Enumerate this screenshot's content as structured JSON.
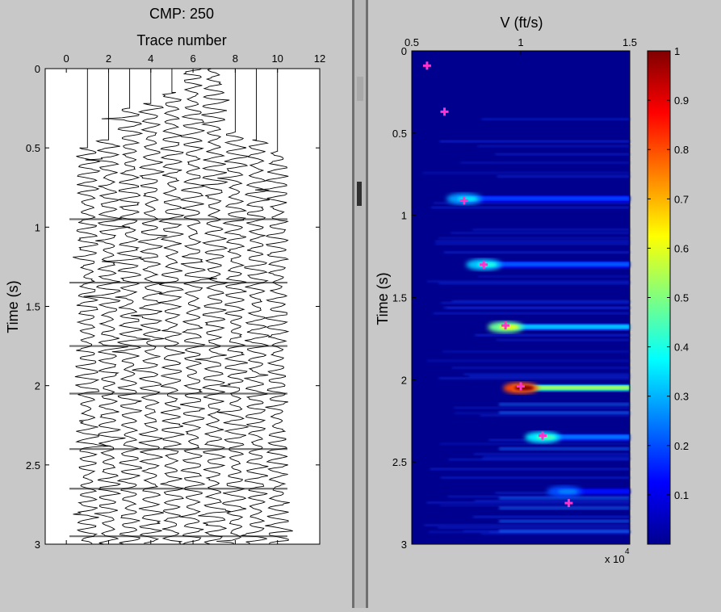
{
  "left_panel": {
    "title": "CMP: 250",
    "xlabel": "Trace number",
    "ylabel": "Time (s)"
  },
  "right_panel": {
    "xlabel": "V (ft/s)",
    "ylabel": "Time (s)",
    "exponent_label": "x 10",
    "exponent_power": "4"
  },
  "chart_data": [
    {
      "type": "line",
      "title": "CMP: 250",
      "xlabel": "Trace number",
      "ylabel": "Time (s)",
      "xlim": [
        -1,
        12
      ],
      "ylim": [
        3,
        0
      ],
      "x_ticks": [
        "0",
        "2",
        "4",
        "6",
        "8",
        "10",
        "12"
      ],
      "y_ticks": [
        "0",
        "0.5",
        "1",
        "1.5",
        "2",
        "2.5",
        "3"
      ],
      "grid": false,
      "trace_offsets": [
        1,
        2,
        3,
        4,
        5,
        6,
        7,
        8,
        9,
        10
      ],
      "first_break_times": [
        0.5,
        0.45,
        0.25,
        0.22,
        0.15,
        0.0,
        0.0,
        0.4,
        0.45,
        0.52
      ],
      "seismic_color": "#000000"
    },
    {
      "type": "heatmap",
      "xlabel": "V (ft/s)",
      "ylabel": "Time (s)",
      "x_scale_label": "x 10^4",
      "xlim": [
        0.5,
        1.5
      ],
      "ylim": [
        3,
        0
      ],
      "x_ticks": [
        "0.5",
        "1",
        "1.5"
      ],
      "y_ticks": [
        "0",
        "0.5",
        "1",
        "1.5",
        "2",
        "2.5",
        "3"
      ],
      "colorbar": {
        "colormap": "jet",
        "range": [
          0,
          1
        ],
        "ticks": [
          "0.1",
          "0.2",
          "0.3",
          "0.4",
          "0.5",
          "0.6",
          "0.7",
          "0.8",
          "0.9",
          "1"
        ]
      },
      "semblance_events": [
        {
          "time": 0.9,
          "velocity": 0.74,
          "peak": 0.35
        },
        {
          "time": 1.3,
          "velocity": 0.83,
          "peak": 0.4
        },
        {
          "time": 1.68,
          "velocity": 0.93,
          "peak": 0.6
        },
        {
          "time": 2.05,
          "velocity": 1.0,
          "peak": 1.0
        },
        {
          "time": 2.35,
          "velocity": 1.1,
          "peak": 0.45
        },
        {
          "time": 2.68,
          "velocity": 1.2,
          "peak": 0.25
        }
      ],
      "picks": {
        "color": "#ff33cc",
        "points": [
          {
            "velocity": 0.57,
            "time": 0.09
          },
          {
            "velocity": 0.65,
            "time": 0.37
          },
          {
            "velocity": 0.74,
            "time": 0.91
          },
          {
            "velocity": 0.83,
            "time": 1.3
          },
          {
            "velocity": 0.93,
            "time": 1.67
          },
          {
            "velocity": 1.0,
            "time": 2.04
          },
          {
            "velocity": 1.1,
            "time": 2.34
          },
          {
            "velocity": 1.22,
            "time": 2.75
          }
        ]
      }
    }
  ]
}
